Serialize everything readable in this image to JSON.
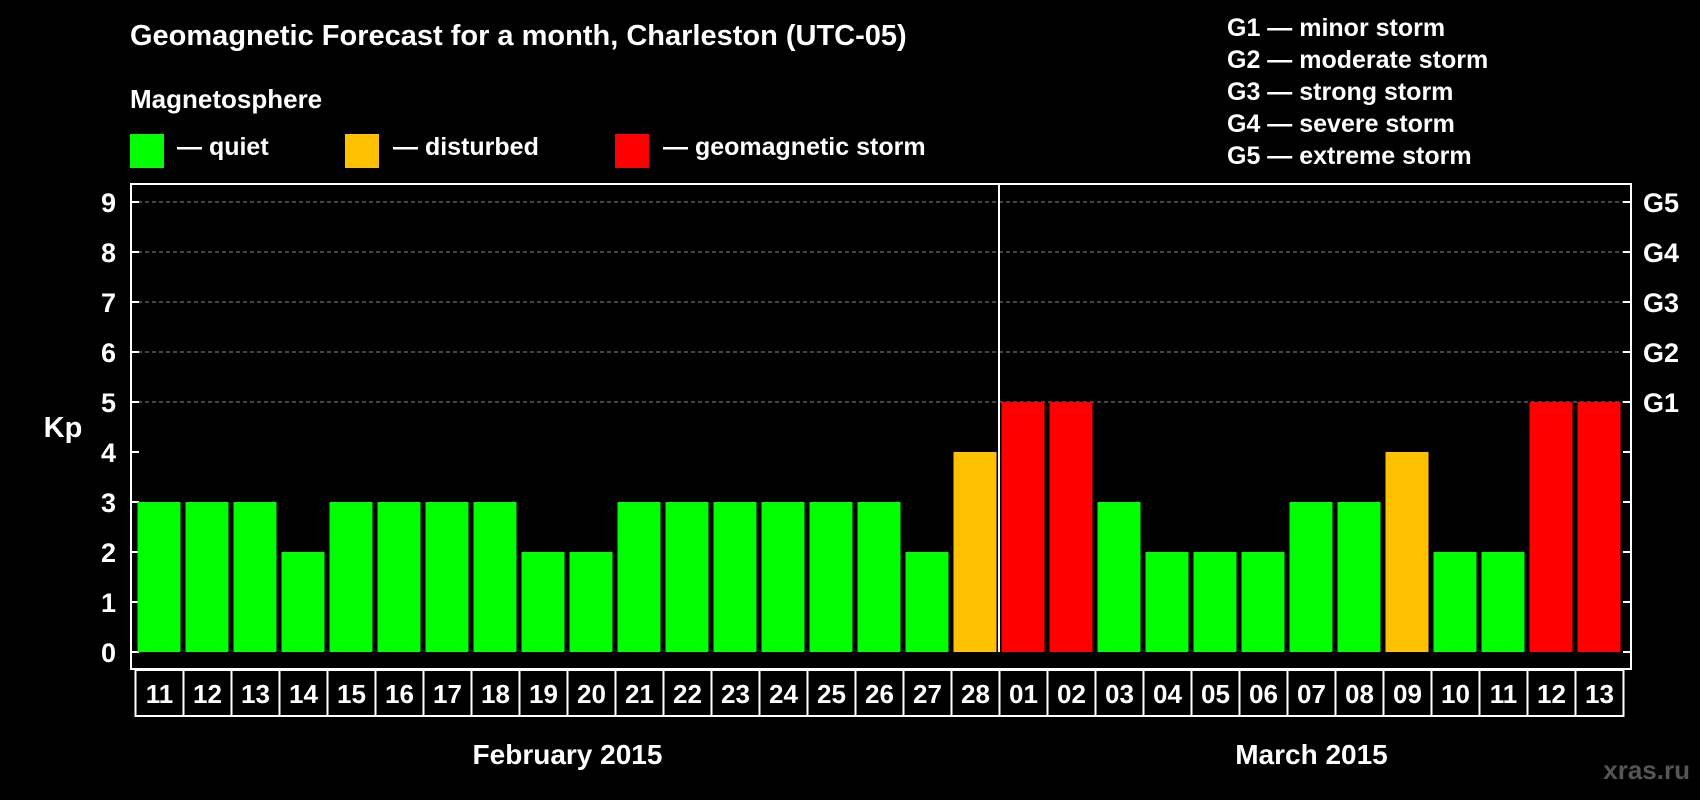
{
  "chart_data": {
    "type": "bar",
    "title": "Geomagnetic Forecast for a month, Charleston (UTC-05)",
    "legend_title": "Magnetosphere",
    "legend": [
      {
        "label": "— quiet",
        "color": "#00ff00"
      },
      {
        "label": "— disturbed",
        "color": "#ffc000"
      },
      {
        "label": "— geomagnetic storm",
        "color": "#ff0000"
      }
    ],
    "storm_scale": [
      "G1 — minor storm",
      "G2 — moderate storm",
      "G3 — strong storm",
      "G4 — severe storm",
      "G5 — extreme storm"
    ],
    "ylabel": "Kp",
    "ylim": [
      0,
      9
    ],
    "yticks": [
      "0",
      "1",
      "2",
      "3",
      "4",
      "5",
      "6",
      "7",
      "8",
      "9"
    ],
    "right_ticks": [
      {
        "value": 5,
        "label": "G1"
      },
      {
        "value": 6,
        "label": "G2"
      },
      {
        "value": 7,
        "label": "G3"
      },
      {
        "value": 8,
        "label": "G4"
      },
      {
        "value": 9,
        "label": "G5"
      }
    ],
    "grid": true,
    "months": [
      {
        "label": "February 2015",
        "days": [
          "11",
          "12",
          "13",
          "14",
          "15",
          "16",
          "17",
          "18",
          "19",
          "20",
          "21",
          "22",
          "23",
          "24",
          "25",
          "26",
          "27",
          "28"
        ]
      },
      {
        "label": "March 2015",
        "days": [
          "01",
          "02",
          "03",
          "04",
          "05",
          "06",
          "07",
          "08",
          "09",
          "10",
          "11",
          "12",
          "13"
        ]
      }
    ],
    "values": [
      3,
      3,
      3,
      2,
      3,
      3,
      3,
      3,
      2,
      2,
      3,
      3,
      3,
      3,
      3,
      3,
      2,
      4,
      5,
      5,
      3,
      2,
      2,
      2,
      3,
      3,
      4,
      2,
      2,
      5,
      5
    ],
    "colors": {
      "quiet": "#00ff00",
      "disturbed": "#ffc000",
      "storm": "#ff0000"
    }
  },
  "watermark": "xras.ru"
}
